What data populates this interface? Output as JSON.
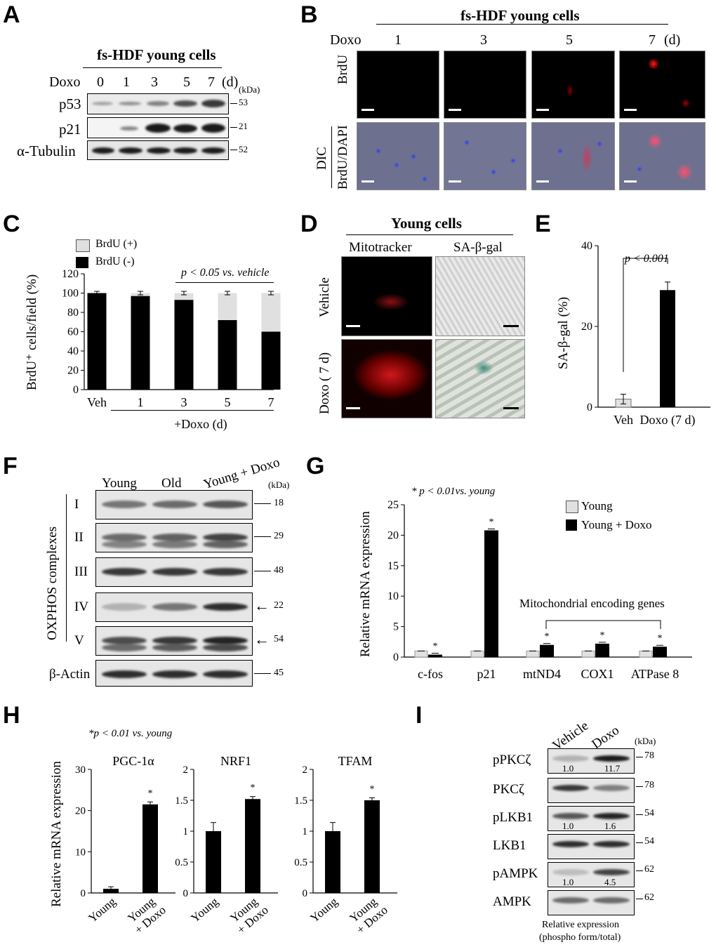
{
  "panels": [
    "A",
    "B",
    "C",
    "D",
    "E",
    "F",
    "G",
    "H",
    "I"
  ],
  "A": {
    "title": "fs-HDF young cells",
    "doxo_label": "Doxo",
    "days": [
      "0",
      "1",
      "3",
      "5",
      "7"
    ],
    "day_unit": "(d)",
    "kda": "(kDa)",
    "rows": [
      {
        "name": "p53",
        "kda": "53"
      },
      {
        "name": "p21",
        "kda": "21"
      },
      {
        "name": "α-Tubulin",
        "kda": "52"
      }
    ]
  },
  "B": {
    "title": "fs-HDF young cells",
    "doxo_label": "Doxo",
    "days": [
      "1",
      "3",
      "5",
      "7"
    ],
    "day_unit": "(d)",
    "row1": "BrdU",
    "row2a": "DIC",
    "row2b": "BrdU/DAPI"
  },
  "C": {
    "legend_pos": "BrdU (+)",
    "legend_neg": "BrdU (-)",
    "sig": "p < 0.05 vs. vehicle",
    "xgroup": "+Doxo (d)",
    "ylabel": "BrdU⁺ cells/field (%)",
    "chart_data": {
      "type": "bar",
      "stacked": true,
      "categories": [
        "Veh",
        "1",
        "3",
        "5",
        "7"
      ],
      "series": [
        {
          "name": "BrdU (-)",
          "values": [
            100,
            97,
            93,
            72,
            60
          ]
        },
        {
          "name": "BrdU (+)",
          "values": [
            0,
            3,
            7,
            28,
            40
          ]
        }
      ],
      "ylim": [
        0,
        120
      ],
      "yticks": [
        0,
        20,
        40,
        60,
        80,
        100,
        120
      ]
    }
  },
  "D": {
    "title": "Young cells",
    "col1": "Mitotracker",
    "col2": "SA-β-gal",
    "row1": "Vehicle",
    "row2": "Doxo ( 7 d)"
  },
  "E": {
    "sig": "p < 0.001",
    "ylabel": "SA-β-gal (%)",
    "chart_data": {
      "type": "bar",
      "categories": [
        "Veh",
        "Doxo (7 d)"
      ],
      "values": [
        2,
        29
      ],
      "errors": [
        1.2,
        2
      ],
      "ylim": [
        0,
        40
      ],
      "yticks": [
        0,
        20,
        40
      ]
    }
  },
  "F": {
    "cols": [
      "Young",
      "Old",
      "Young + Doxo"
    ],
    "kda": "(kDa)",
    "group": "OXPHOS complexes",
    "rows": [
      {
        "name": "I",
        "kda": "18",
        "arrow": false
      },
      {
        "name": "II",
        "kda": "29",
        "arrow": false
      },
      {
        "name": "III",
        "kda": "48",
        "arrow": false
      },
      {
        "name": "IV",
        "kda": "22",
        "arrow": true
      },
      {
        "name": "V",
        "kda": "54",
        "arrow": true
      },
      {
        "name": "β-Actin",
        "kda": "45",
        "arrow": false
      }
    ]
  },
  "G": {
    "sig": "* p < 0.01vs. young",
    "legend": [
      "Young",
      "Young + Doxo"
    ],
    "mito": "Mitochondrial encoding genes",
    "ylabel": "Relative mRNA expression",
    "chart_data": {
      "type": "bar",
      "categories": [
        "c-fos",
        "p21",
        "mtND4",
        "COX1",
        "ATPase 8"
      ],
      "series": [
        {
          "name": "Young",
          "values": [
            1,
            1,
            1,
            1,
            1
          ]
        },
        {
          "name": "Young + Doxo",
          "values": [
            0.4,
            20.8,
            2.0,
            2.2,
            1.7
          ]
        }
      ],
      "ylim": [
        0,
        25
      ],
      "yticks": [
        0,
        5,
        10,
        15,
        20,
        25
      ]
    }
  },
  "H": {
    "sig": "*p < 0.01 vs. young",
    "ylabel": "Relative mRNA expression",
    "chart_data": [
      {
        "type": "bar",
        "title": "PGC-1α",
        "categories": [
          "Young",
          "Young + Doxo"
        ],
        "values": [
          1,
          21.5
        ],
        "ylim": [
          0,
          30
        ],
        "yticks": [
          0,
          10,
          20,
          30
        ]
      },
      {
        "type": "bar",
        "title": "NRF1",
        "categories": [
          "Young",
          "Young + Doxo"
        ],
        "values": [
          1,
          1.52
        ],
        "ylim": [
          0,
          2
        ],
        "yticks": [
          0,
          0.5,
          1,
          1.5,
          2
        ]
      },
      {
        "type": "bar",
        "title": "TFAM",
        "categories": [
          "Young",
          "Young + Doxo"
        ],
        "values": [
          1,
          1.5
        ],
        "ylim": [
          0,
          2
        ],
        "yticks": [
          0,
          0.5,
          1,
          1.5,
          2
        ]
      }
    ]
  },
  "I": {
    "cols": [
      "Vehicle",
      "Doxo"
    ],
    "kda": "(kDa)",
    "foot1": "Relative expression",
    "foot2": "(phospho form/total)",
    "rows": [
      {
        "name": "pPKCζ",
        "kda": "78",
        "q": [
          "1.0",
          "11.7"
        ]
      },
      {
        "name": "PKCζ",
        "kda": "78"
      },
      {
        "name": "pLKB1",
        "kda": "54",
        "q": [
          "1.0",
          "1.6"
        ]
      },
      {
        "name": "LKB1",
        "kda": "54"
      },
      {
        "name": "pAMPK",
        "kda": "62",
        "q": [
          "1.0",
          "4.5"
        ]
      },
      {
        "name": "AMPK",
        "kda": "62"
      }
    ]
  }
}
